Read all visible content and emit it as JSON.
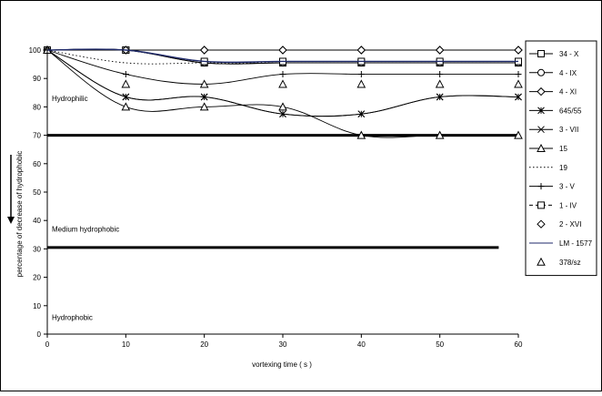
{
  "chart_data": {
    "type": "line",
    "title": "",
    "xlabel": "vortexing time ( s )",
    "ylabel": "percentage of decrease of hydrophobic",
    "xlim": [
      0,
      60
    ],
    "ylim": [
      0,
      100
    ],
    "x_ticks": [
      "0",
      "10",
      "20",
      "30",
      "40",
      "50",
      "60"
    ],
    "y_ticks": [
      "0",
      "10",
      "20",
      "30",
      "40",
      "50",
      "60",
      "70",
      "80",
      "90",
      "100"
    ],
    "x": [
      0,
      10,
      20,
      30,
      40,
      50,
      60
    ],
    "grid": false,
    "legend_position": "right",
    "regions": [
      {
        "label": "Hydrophilic",
        "y": 82
      },
      {
        "label": "Medium hydrophobic",
        "y": 36
      },
      {
        "label": "Hydrophobic",
        "y": 5
      }
    ],
    "thresholds": [
      {
        "y": 70,
        "x_end": 60
      },
      {
        "y": 30.5,
        "x_end": 57.5
      }
    ],
    "series": [
      {
        "name": "34 - X",
        "values": [
          100,
          100,
          95.5,
          95.5,
          95.5,
          95.5,
          95.5
        ],
        "marker": "square",
        "line": "solid",
        "color": "#000000"
      },
      {
        "name": "4 - IX",
        "values": [
          100,
          100,
          95.5,
          95.5,
          95.5,
          95.5,
          95.5
        ],
        "marker": "circle",
        "line": "solid",
        "color": "#000000"
      },
      {
        "name": "4 - XI",
        "values": [
          100,
          100,
          100,
          100,
          100,
          100,
          100
        ],
        "marker": "diamond",
        "line": "solid",
        "color": "#000000"
      },
      {
        "name": "645/55",
        "values": [
          100,
          83.5,
          83.5,
          77.5,
          77.5,
          83.5,
          83.5
        ],
        "marker": "star",
        "line": "solid",
        "color": "#000000"
      },
      {
        "name": "3 - VII",
        "values": [
          100,
          83.5,
          83.5,
          77.5,
          77.5,
          83.5,
          83.5
        ],
        "marker": "x",
        "line": "solid",
        "color": "#000000"
      },
      {
        "name": "15",
        "values": [
          100,
          80,
          80,
          80,
          70,
          70,
          70
        ],
        "marker": "triangle",
        "line": "solid",
        "color": "#000000"
      },
      {
        "name": "19",
        "values": [
          100,
          95.5,
          95.5,
          95.5,
          95.5,
          95.5,
          95.5
        ],
        "marker": "none",
        "line": "dotted",
        "color": "#000000"
      },
      {
        "name": "3 - V",
        "values": [
          100,
          91.5,
          88,
          91.5,
          91.5,
          91.5,
          91.5
        ],
        "marker": "plus",
        "line": "solid",
        "color": "#000000"
      },
      {
        "name": "1 - IV",
        "values": [
          100,
          100,
          96,
          96,
          96,
          96,
          96
        ],
        "marker": "square",
        "line": "dashed",
        "color": "#000000"
      },
      {
        "name": "2 - XVI",
        "values": [
          100,
          100,
          100,
          100,
          100,
          100,
          100
        ],
        "marker": "diamond",
        "line": "none",
        "color": "#000000"
      },
      {
        "name": "LM - 1577",
        "values": [
          100,
          100,
          96,
          96,
          96,
          96,
          96
        ],
        "marker": "none",
        "line": "solid",
        "color": "#1f2a6b"
      },
      {
        "name": "378/sz",
        "values": [
          100,
          88,
          88,
          88,
          88,
          88,
          88
        ],
        "marker": "triangle",
        "line": "none",
        "color": "#000000"
      }
    ]
  }
}
